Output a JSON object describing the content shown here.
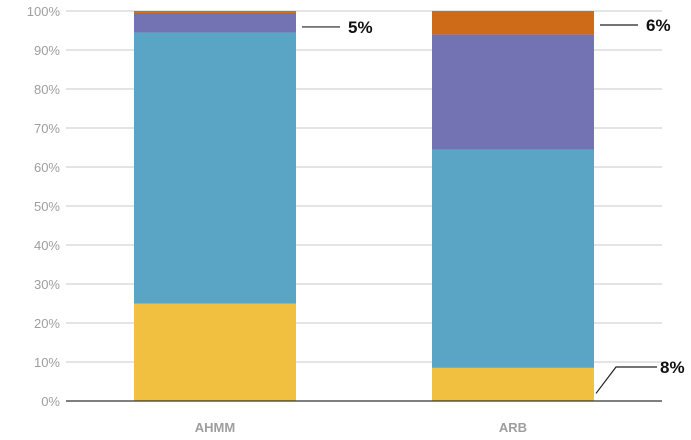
{
  "chart_data": {
    "type": "bar",
    "stacked": true,
    "categories": [
      "AHMM",
      "ARB"
    ],
    "series": [
      {
        "color": "#f2c040",
        "values": [
          25,
          8.5
        ]
      },
      {
        "color": "#5aa5c5",
        "values": [
          69.5,
          56
        ]
      },
      {
        "color": "#7373b3",
        "values": [
          5,
          29.5
        ]
      },
      {
        "color": "#cd6b19",
        "values": [
          0.5,
          6
        ]
      }
    ],
    "ylim": [
      0,
      100
    ],
    "yticks": [
      "0%",
      "10%",
      "20%",
      "30%",
      "40%",
      "50%",
      "60%",
      "70%",
      "80%",
      "90%",
      "100%"
    ],
    "grid": true,
    "callouts": [
      {
        "category": "AHMM",
        "series": 2,
        "label": "5%"
      },
      {
        "category": "ARB",
        "series": 3,
        "label": "6%"
      },
      {
        "category": "ARB",
        "series": 0,
        "label": "8%"
      }
    ]
  }
}
